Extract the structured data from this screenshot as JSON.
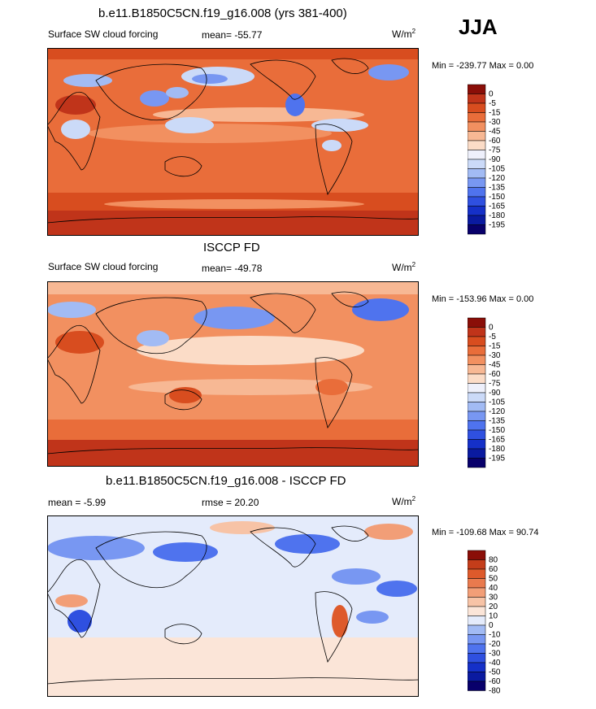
{
  "season": "JJA",
  "colors": {
    "sw_cf_scale": [
      "#08006b",
      "#0a1aa0",
      "#1530c8",
      "#2f50e0",
      "#4f73ee",
      "#7897f2",
      "#a2bbf4",
      "#cbdaf8",
      "#eef0fb",
      "#fbdcc7",
      "#f7b894",
      "#f29060",
      "#e96d3a",
      "#d84d1f",
      "#c0341a",
      "#8a0e08"
    ],
    "diff_scale": [
      "#08006b",
      "#0a1aa0",
      "#1530c8",
      "#2f50e0",
      "#4f73ee",
      "#7897f2",
      "#a2bbf4",
      "#e4ebfb",
      "#fbe5d8",
      "#f7c3a6",
      "#f29e77",
      "#e97a4e",
      "#de5a2b",
      "#c43d1a",
      "#8a0e08"
    ]
  },
  "panels": [
    {
      "title": "b.e11.B1850C5CN.f19_g16.008 (yrs 381-400)",
      "left_label": "Surface SW cloud forcing",
      "stat_label": "mean= -55.77",
      "units_base": "W/m",
      "units_exp": "2",
      "minmax": "Min = -239.77 Max =   0.00"
    },
    {
      "title": "ISCCP FD",
      "left_label": "Surface SW cloud forcing",
      "stat_label": "mean= -49.78",
      "units_base": "W/m",
      "units_exp": "2",
      "minmax": "Min = -153.96 Max =   0.00"
    },
    {
      "title": "b.e11.B1850C5CN.f19_g16.008 - ISCCP FD",
      "left_label": "mean =  -5.99",
      "stat_label": "rmse =  20.20",
      "units_base": "W/m",
      "units_exp": "2",
      "minmax": "Min = -109.68 Max =  90.74"
    }
  ],
  "chart_data": [
    {
      "type": "heatmap",
      "title": "b.e11.B1850C5CN.f19_g16.008 (yrs 381-400)",
      "variable": "Surface SW cloud forcing",
      "units": "W/m2",
      "mean": -55.77,
      "min": -239.77,
      "max": 0.0,
      "colorbar_levels": [
        "0",
        "-5",
        "-15",
        "-30",
        "-45",
        "-60",
        "-75",
        "-90",
        "-105",
        "-120",
        "-135",
        "-150",
        "-165",
        "-180",
        "-195"
      ]
    },
    {
      "type": "heatmap",
      "title": "ISCCP FD",
      "variable": "Surface SW cloud forcing",
      "units": "W/m2",
      "mean": -49.78,
      "min": -153.96,
      "max": 0.0,
      "colorbar_levels": [
        "0",
        "-5",
        "-15",
        "-30",
        "-45",
        "-60",
        "-75",
        "-90",
        "-105",
        "-120",
        "-135",
        "-150",
        "-165",
        "-180",
        "-195"
      ]
    },
    {
      "type": "heatmap",
      "title": "b.e11.B1850C5CN.f19_g16.008 - ISCCP FD",
      "units": "W/m2",
      "mean": -5.99,
      "rmse": 20.2,
      "min": -109.68,
      "max": 90.74,
      "colorbar_levels": [
        "80",
        "60",
        "50",
        "40",
        "30",
        "20",
        "10",
        "0",
        "-10",
        "-20",
        "-30",
        "-40",
        "-50",
        "-60",
        "-80"
      ]
    }
  ]
}
